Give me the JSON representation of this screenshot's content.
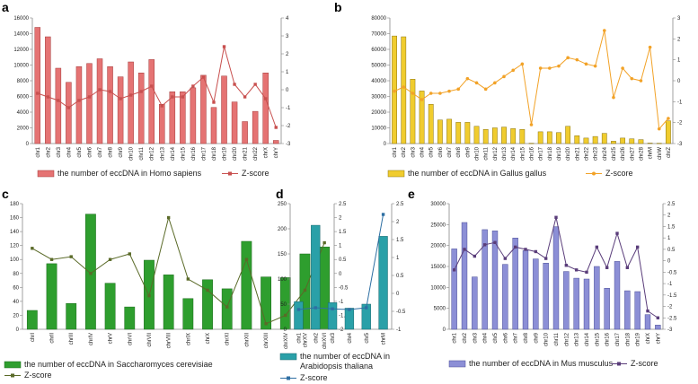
{
  "chart_data": [
    {
      "type": "bar",
      "panel_label": "a",
      "categories": [
        "chr1",
        "chr2",
        "chr3",
        "chr4",
        "chr5",
        "chr6",
        "chr7",
        "chr8",
        "chr9",
        "chr10",
        "chr11",
        "chr12",
        "chr13",
        "chr14",
        "chr15",
        "chr16",
        "chr17",
        "chr18",
        "chr19",
        "chr20",
        "chr21",
        "chr22",
        "chrX",
        "chrY"
      ],
      "values": [
        14800,
        13600,
        9600,
        7800,
        9800,
        10200,
        10800,
        9800,
        8500,
        10400,
        9000,
        10700,
        5000,
        6600,
        6600,
        7100,
        8700,
        4600,
        8600,
        5300,
        2800,
        4100,
        9000,
        400
      ],
      "ylim": [
        0,
        16000
      ],
      "yticks": [
        0,
        2000,
        4000,
        6000,
        8000,
        10000,
        12000,
        14000,
        16000
      ],
      "line": {
        "name": "Z-score",
        "values": [
          -0.2,
          -0.4,
          -0.6,
          -1.0,
          -0.6,
          -0.4,
          0.0,
          -0.1,
          -0.5,
          -0.3,
          -0.1,
          0.2,
          -0.9,
          -0.4,
          -0.4,
          0.2,
          0.7,
          -0.7,
          2.4,
          0.3,
          -0.4,
          0.3,
          -0.5,
          -2.1
        ]
      },
      "y2lim": [
        -3,
        4
      ],
      "y2ticks": [
        -3,
        -2,
        -1,
        0,
        1,
        2,
        3,
        4
      ],
      "bar_color": "#e57373",
      "bar_edge": "#a33b3b",
      "line_color": "#c8504f",
      "marker": "square",
      "legend_bar": "the number of eccDNA in Homo sapiens",
      "legend_line": "Z-score"
    },
    {
      "type": "bar",
      "panel_label": "b",
      "categories": [
        "chr1",
        "chr2",
        "chr3",
        "chr4",
        "chr5",
        "chr6",
        "chr7",
        "chr8",
        "chr9",
        "chr10",
        "chr11",
        "chr12",
        "chr13",
        "chr14",
        "chr15",
        "chr16",
        "chr17",
        "chr18",
        "chr19",
        "chr20",
        "chr21",
        "chr22",
        "chr23",
        "chr24",
        "chr25",
        "chr26",
        "chr27",
        "chr28",
        "chrM",
        "chrW",
        "chrZ"
      ],
      "values": [
        68500,
        68000,
        41000,
        33500,
        25000,
        15000,
        15500,
        13500,
        13500,
        11000,
        9000,
        10000,
        10500,
        9500,
        9000,
        200,
        7500,
        7500,
        7000,
        11000,
        5000,
        3500,
        4500,
        6500,
        1500,
        3500,
        3000,
        2500,
        300,
        200,
        14500
      ],
      "ylim": [
        0,
        80000
      ],
      "yticks": [
        0,
        10000,
        20000,
        30000,
        40000,
        50000,
        60000,
        70000,
        80000
      ],
      "line": {
        "name": "Z-score",
        "values": [
          -0.5,
          -0.3,
          -0.6,
          -0.9,
          -0.6,
          -0.6,
          -0.5,
          -0.4,
          0.1,
          -0.1,
          -0.4,
          -0.1,
          0.2,
          0.5,
          0.8,
          -2.1,
          0.6,
          0.6,
          0.7,
          1.1,
          1.0,
          0.8,
          0.7,
          2.4,
          -0.8,
          0.6,
          0.1,
          0.0,
          1.6,
          -2.3,
          -1.8
        ]
      },
      "y2lim": [
        -3,
        3
      ],
      "y2ticks": [
        -3,
        -2,
        -1,
        0,
        1,
        2,
        3
      ],
      "bar_color": "#f0cc2e",
      "bar_edge": "#8a7410",
      "line_color": "#f2a227",
      "marker": "circle",
      "legend_bar": "the number of eccDNA in Gallus gallus",
      "legend_line": "Z-score"
    },
    {
      "type": "bar",
      "panel_label": "c",
      "categories": [
        "chrI",
        "chrII",
        "chrIII",
        "chrIV",
        "chrV",
        "chrVI",
        "chrVII",
        "chrVIII",
        "chrIX",
        "chrX",
        "chrXI",
        "chrXII",
        "chrXIII",
        "chrXIV",
        "chrXV",
        "chrXVI"
      ],
      "values": [
        27,
        94,
        37,
        165,
        66,
        32,
        99,
        78,
        44,
        71,
        58,
        126,
        75,
        74,
        108,
        118
      ],
      "ylim": [
        0,
        180
      ],
      "yticks": [
        0,
        20,
        40,
        60,
        80,
        100,
        120,
        140,
        160,
        180
      ],
      "line": {
        "name": "Z-score",
        "values": [
          0.9,
          0.5,
          0.6,
          0.0,
          0.5,
          0.7,
          -0.8,
          2.0,
          -0.2,
          -0.6,
          -1.2,
          0.5,
          -1.8,
          -1.5,
          -0.6,
          1.1
        ]
      },
      "y2lim": [
        -2,
        2.5
      ],
      "y2ticks": [
        -2,
        -1.5,
        -1,
        -0.5,
        0,
        0.5,
        1,
        1.5,
        2,
        2.5
      ],
      "bar_color": "#2e9e2e",
      "bar_edge": "#1a6a1a",
      "line_color": "#5a6a28",
      "marker": "square",
      "legend_bar": "the number of eccDNA in Saccharomyces cerevisiae",
      "legend_line": "Z-score"
    },
    {
      "type": "bar",
      "panel_label": "d",
      "categories": [
        "chr1",
        "chr2",
        "chr3",
        "chr4",
        "chr5",
        "chrM"
      ],
      "values": [
        55,
        207,
        53,
        42,
        50,
        185
      ],
      "ylim": [
        0,
        250
      ],
      "yticks": [
        0,
        50,
        100,
        150,
        200,
        250
      ],
      "line": {
        "name": "Z-score",
        "values": [
          -0.45,
          -0.4,
          -0.43,
          -0.45,
          -0.4,
          2.2
        ]
      },
      "y2lim": [
        -1,
        2.5
      ],
      "y2ticks": [
        -1,
        -0.5,
        0,
        0.5,
        1,
        1.5,
        2,
        2.5
      ],
      "bar_color": "#2aa0a8",
      "bar_edge": "#16666c",
      "line_color": "#2e6fa3",
      "marker": "square",
      "legend_bar": "the number of eccDNA in Arabidopsis thaliana",
      "legend_line": "Z-score"
    },
    {
      "type": "bar",
      "panel_label": "e",
      "categories": [
        "chr1",
        "chr2",
        "chr3",
        "chr4",
        "chr5",
        "chr6",
        "chr7",
        "chr8",
        "chr9",
        "chr10",
        "chr11",
        "chr12",
        "chr13",
        "chr14",
        "chr15",
        "chr16",
        "chr17",
        "chr18",
        "chr19",
        "chrX",
        "chrY"
      ],
      "values": [
        19200,
        25500,
        12500,
        23800,
        23500,
        15500,
        21800,
        18800,
        16800,
        15800,
        24500,
        13800,
        12200,
        12000,
        15000,
        9800,
        16200,
        9200,
        9000,
        3500,
        1000
      ],
      "ylim": [
        0,
        30000
      ],
      "yticks": [
        0,
        5000,
        10000,
        15000,
        20000,
        25000,
        30000
      ],
      "line": {
        "name": "Z-score",
        "values": [
          -0.4,
          0.5,
          0.2,
          0.7,
          0.8,
          0.1,
          0.6,
          0.5,
          0.4,
          0.1,
          1.9,
          -0.2,
          -0.4,
          -0.5,
          0.6,
          -0.3,
          1.2,
          -0.3,
          0.6,
          -2.2,
          -2.5
        ]
      },
      "y2lim": [
        -3,
        2.5
      ],
      "y2ticks": [
        -3,
        -2.5,
        -2,
        -1.5,
        -1,
        -0.5,
        0,
        0.5,
        1,
        1.5,
        2,
        2.5
      ],
      "bar_color": "#8c8fd6",
      "bar_edge": "#4a4d96",
      "line_color": "#5a3d7a",
      "marker": "square",
      "legend_bar": "the number of eccDNA in Mus musculus",
      "legend_line": "Z-score"
    }
  ]
}
